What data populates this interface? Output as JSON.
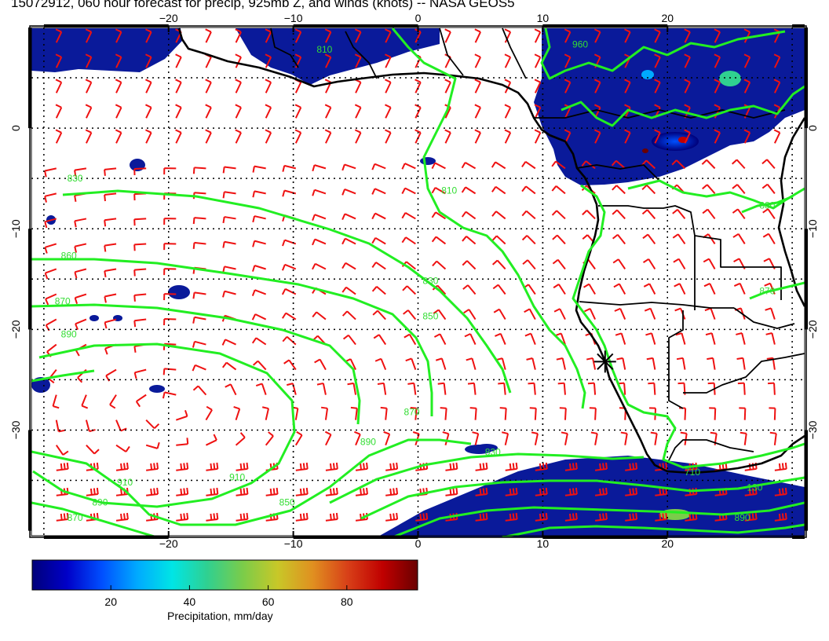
{
  "title": "15072912, 060 hour forecast for precip, 925mb Z, and winds (knots) -- NASA GEOS5",
  "map": {
    "lon_range": [
      -31,
      31
    ],
    "lat_range": [
      -40.5,
      10
    ],
    "lon_ticks": [
      -20,
      -10,
      0,
      10,
      20
    ],
    "lat_ticks": [
      0,
      -10,
      -20,
      -30
    ],
    "lon_tick_labels": [
      "−20",
      "−10",
      "0",
      "10",
      "20"
    ],
    "lat_tick_labels": [
      "0",
      "−10",
      "−20",
      "−30"
    ],
    "contour_labels": [
      {
        "lon": -27.5,
        "lat": -5.3,
        "text": "830"
      },
      {
        "lon": -28.0,
        "lat": -13.0,
        "text": "860"
      },
      {
        "lon": -28.5,
        "lat": -17.5,
        "text": "870"
      },
      {
        "lon": -28.0,
        "lat": -20.8,
        "text": "890"
      },
      {
        "lon": -23.5,
        "lat": -35.5,
        "text": "910"
      },
      {
        "lon": -25.5,
        "lat": -37.5,
        "text": "890"
      },
      {
        "lon": -27.5,
        "lat": -39.0,
        "text": "870"
      },
      {
        "lon": -14.5,
        "lat": -35.0,
        "text": "910"
      },
      {
        "lon": -10.5,
        "lat": -37.5,
        "text": "850"
      },
      {
        "lon": -7.5,
        "lat": 7.5,
        "text": "810"
      },
      {
        "lon": 2.5,
        "lat": -6.5,
        "text": "810"
      },
      {
        "lon": -0.5,
        "lat": -28.5,
        "text": "870"
      },
      {
        "lon": -4.0,
        "lat": -31.5,
        "text": "890"
      },
      {
        "lon": 1.0,
        "lat": -15.5,
        "text": "830"
      },
      {
        "lon": 1.0,
        "lat": -19.0,
        "text": "850"
      },
      {
        "lon": 13.0,
        "lat": 8.0,
        "text": "960"
      },
      {
        "lon": 6.0,
        "lat": -32.5,
        "text": "830"
      },
      {
        "lon": 28.0,
        "lat": -8.0,
        "text": "880"
      },
      {
        "lon": 28.0,
        "lat": -16.5,
        "text": "870"
      },
      {
        "lon": 22.0,
        "lat": -34.5,
        "text": "710"
      },
      {
        "lon": 27.0,
        "lat": -36.0,
        "text": "130"
      },
      {
        "lon": 26.0,
        "lat": -39.0,
        "text": "890"
      }
    ],
    "station_marker": {
      "lon": 15.0,
      "lat": -23.2
    }
  },
  "colorbar": {
    "label": "Precipitation, mm/day",
    "min": 0,
    "max": 98,
    "ticks": [
      20,
      40,
      60,
      80
    ],
    "tick_labels": [
      "20",
      "40",
      "60",
      "80"
    ],
    "colors": [
      "#00007a",
      "#0000c8",
      "#0050ff",
      "#00aaff",
      "#00e5e5",
      "#30d090",
      "#7acc4a",
      "#c8c828",
      "#e09020",
      "#d84018",
      "#c00000",
      "#6a0000"
    ]
  }
}
